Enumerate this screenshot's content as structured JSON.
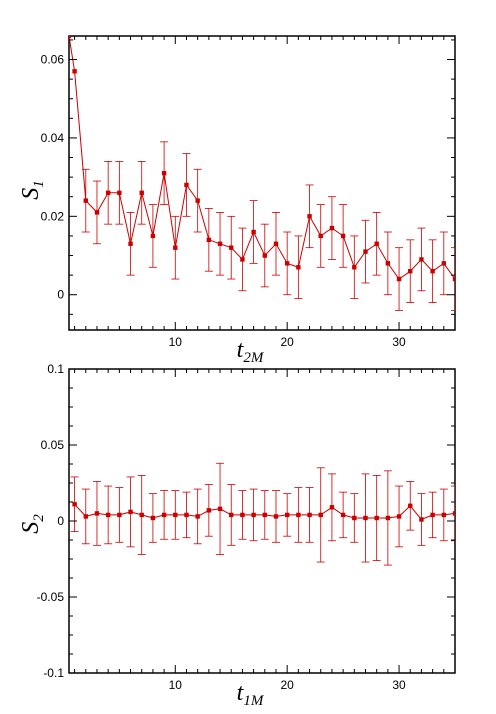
{
  "chart_data": [
    {
      "type": "line",
      "xlabel": "t",
      "xlabel_sub": "2M",
      "ylabel": "S",
      "ylabel_sub": "1",
      "xlim": [
        0.5,
        35
      ],
      "ylim": [
        -0.009,
        0.066
      ],
      "xticks": [
        10,
        20,
        30
      ],
      "yticks": [
        0,
        0.02,
        0.04,
        0.06
      ],
      "ytick_labels": [
        "0",
        "0.02",
        "0.04",
        "0.06"
      ],
      "grid": false,
      "series": [
        {
          "color": "#cc0000",
          "x": [
            0.5,
            1,
            2,
            3,
            4,
            5,
            6,
            7,
            8,
            9,
            10,
            11,
            12,
            13,
            14,
            15,
            16,
            17,
            18,
            19,
            20,
            21,
            22,
            23,
            24,
            25,
            26,
            27,
            28,
            29,
            30,
            31,
            32,
            33,
            34,
            35
          ],
          "y": [
            0.066,
            0.057,
            0.024,
            0.021,
            0.026,
            0.026,
            0.013,
            0.026,
            0.015,
            0.031,
            0.012,
            0.028,
            0.024,
            0.014,
            0.013,
            0.012,
            0.009,
            0.016,
            0.01,
            0.013,
            0.008,
            0.007,
            0.02,
            0.015,
            0.017,
            0.015,
            0.007,
            0.011,
            0.013,
            0.008,
            0.004,
            0.006,
            0.009,
            0.006,
            0.008,
            0.004
          ],
          "err": [
            0,
            0,
            0.008,
            0.008,
            0.008,
            0.008,
            0.008,
            0.008,
            0.008,
            0.008,
            0.008,
            0.008,
            0.008,
            0.008,
            0.008,
            0.008,
            0.008,
            0.008,
            0.008,
            0.008,
            0.008,
            0.008,
            0.008,
            0.008,
            0.008,
            0.008,
            0.008,
            0.008,
            0.008,
            0.008,
            0.008,
            0.008,
            0.008,
            0.008,
            0.008,
            0.008
          ]
        }
      ]
    },
    {
      "type": "line",
      "xlabel": "t",
      "xlabel_sub": "1M",
      "ylabel": "S",
      "ylabel_sub": "2",
      "xlim": [
        0.5,
        35
      ],
      "ylim": [
        -0.1,
        0.1
      ],
      "xticks": [
        10,
        20,
        30
      ],
      "yticks": [
        -0.1,
        -0.05,
        0,
        0.05,
        0.1
      ],
      "ytick_labels": [
        "-0.1",
        "-0.05",
        "0",
        "0.05",
        "0.1"
      ],
      "grid": false,
      "series": [
        {
          "color": "#cc0000",
          "x": [
            1,
            2,
            3,
            4,
            5,
            6,
            7,
            8,
            9,
            10,
            11,
            12,
            13,
            14,
            15,
            16,
            17,
            18,
            19,
            20,
            21,
            22,
            23,
            24,
            25,
            26,
            27,
            28,
            29,
            30,
            31,
            32,
            33,
            34,
            35
          ],
          "y": [
            0.011,
            0.003,
            0.005,
            0.004,
            0.004,
            0.006,
            0.004,
            0.002,
            0.004,
            0.004,
            0.004,
            0.003,
            0.007,
            0.008,
            0.004,
            0.004,
            0.004,
            0.004,
            0.003,
            0.004,
            0.004,
            0.004,
            0.004,
            0.009,
            0.004,
            0.002,
            0.002,
            0.002,
            0.002,
            0.003,
            0.01,
            0.001,
            0.004,
            0.004,
            0.005
          ],
          "err": [
            0.018,
            0.018,
            0.021,
            0.019,
            0.018,
            0.023,
            0.026,
            0.016,
            0.016,
            0.016,
            0.015,
            0.018,
            0.017,
            0.03,
            0.02,
            0.016,
            0.017,
            0.016,
            0.017,
            0.014,
            0.018,
            0.018,
            0.031,
            0.022,
            0.015,
            0.016,
            0.029,
            0.028,
            0.031,
            0.02,
            0.016,
            0.017,
            0.015,
            0.017,
            0.018
          ]
        }
      ]
    }
  ]
}
